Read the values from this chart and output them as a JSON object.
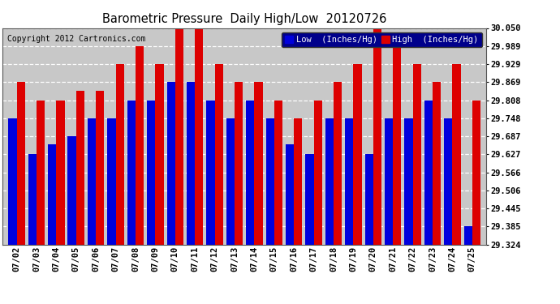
{
  "title": "Barometric Pressure  Daily High/Low  20120726",
  "copyright": "Copyright 2012 Cartronics.com",
  "dates": [
    "07/02",
    "07/03",
    "07/04",
    "07/05",
    "07/06",
    "07/07",
    "07/08",
    "07/09",
    "07/10",
    "07/11",
    "07/12",
    "07/13",
    "07/14",
    "07/15",
    "07/16",
    "07/17",
    "07/18",
    "07/19",
    "07/20",
    "07/21",
    "07/22",
    "07/23",
    "07/24",
    "07/25"
  ],
  "low_values": [
    29.748,
    29.627,
    29.66,
    29.687,
    29.748,
    29.748,
    29.808,
    29.808,
    29.869,
    29.869,
    29.808,
    29.748,
    29.808,
    29.748,
    29.66,
    29.627,
    29.748,
    29.748,
    29.627,
    29.748,
    29.748,
    29.808,
    29.748,
    29.385
  ],
  "high_values": [
    29.869,
    29.808,
    29.808,
    29.84,
    29.84,
    29.929,
    29.989,
    29.929,
    30.05,
    30.05,
    29.929,
    29.869,
    29.869,
    29.808,
    29.748,
    29.808,
    29.869,
    29.929,
    30.05,
    29.989,
    29.929,
    29.869,
    29.929,
    29.808
  ],
  "ylim_min": 29.324,
  "ylim_max": 30.05,
  "yticks": [
    29.324,
    29.385,
    29.445,
    29.506,
    29.566,
    29.627,
    29.687,
    29.748,
    29.808,
    29.869,
    29.929,
    29.989,
    30.05
  ],
  "low_color": "#0000dd",
  "high_color": "#dd0000",
  "bg_color": "#ffffff",
  "plot_bg_color": "#c8c8c8",
  "grid_color": "#ffffff",
  "title_color": "#000000",
  "legend_bg": "#00008b"
}
